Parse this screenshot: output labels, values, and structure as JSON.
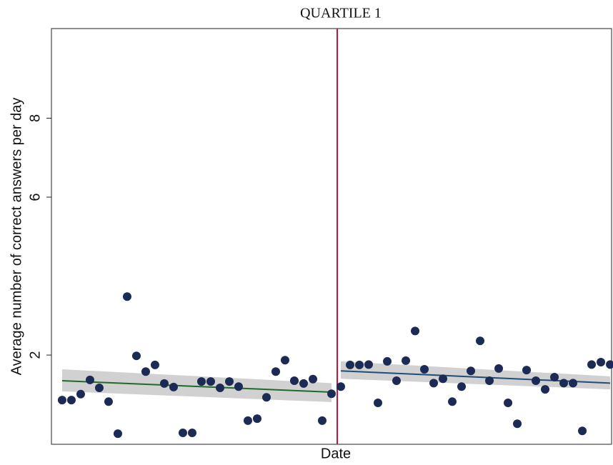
{
  "chart_data": {
    "type": "scatter",
    "title": "QUARTILE 1",
    "x_label": "Date",
    "y_label": "Average number of correct answers per day",
    "xlim": [
      -1.15,
      59.15
    ],
    "ylim": [
      -0.26,
      10.27
    ],
    "yticks": [
      2,
      6,
      8
    ],
    "cutoff": 30,
    "cutoff_color": "#c0143c",
    "series": [
      {
        "color": "#1c2b55",
        "x": [
          0,
          1,
          2,
          3,
          4,
          5,
          6,
          7,
          8,
          9,
          10,
          11,
          12,
          13,
          14,
          15,
          16,
          17,
          18,
          19,
          20,
          21,
          22,
          23,
          24,
          25,
          26,
          27,
          28,
          29,
          30,
          31,
          32,
          33,
          34,
          35,
          36,
          37,
          38,
          39,
          40,
          41,
          42,
          43,
          44,
          45,
          46,
          47,
          48,
          49,
          50,
          51,
          52,
          53,
          54,
          55,
          56,
          57,
          58,
          59
        ],
        "values": [
          0.86,
          0.86,
          1.01,
          1.37,
          1.17,
          0.82,
          0.01,
          3.48,
          1.98,
          1.58,
          1.75,
          1.28,
          1.19,
          0.03,
          0.03,
          1.33,
          1.33,
          1.17,
          1.33,
          1.2,
          0.34,
          0.39,
          0.93,
          1.58,
          1.87,
          1.35,
          1.28,
          1.39,
          0.34,
          1.02,
          1.2,
          1.75,
          1.75,
          1.76,
          0.79,
          1.84,
          1.35,
          1.86,
          2.61,
          1.64,
          1.29,
          1.4,
          0.82,
          1.2,
          1.6,
          2.36,
          1.35,
          1.66,
          0.79,
          0.26,
          1.62,
          1.35,
          1.13,
          1.44,
          1.29,
          1.29,
          0.08,
          1.76,
          1.82,
          1.76
        ]
      }
    ],
    "fits": [
      {
        "color": "#1f6b2a",
        "band_color": "#c9c9c9",
        "x": [
          0,
          29
        ],
        "values": [
          1.35,
          1.06
        ],
        "lower": [
          1.08,
          0.81
        ],
        "upper": [
          1.64,
          1.29
        ]
      },
      {
        "color": "#1f4e79",
        "band_color": "#c9c9c9",
        "x": [
          30,
          59
        ],
        "values": [
          1.6,
          1.29
        ],
        "lower": [
          1.4,
          1.13
        ],
        "upper": [
          1.84,
          1.46
        ]
      }
    ]
  }
}
